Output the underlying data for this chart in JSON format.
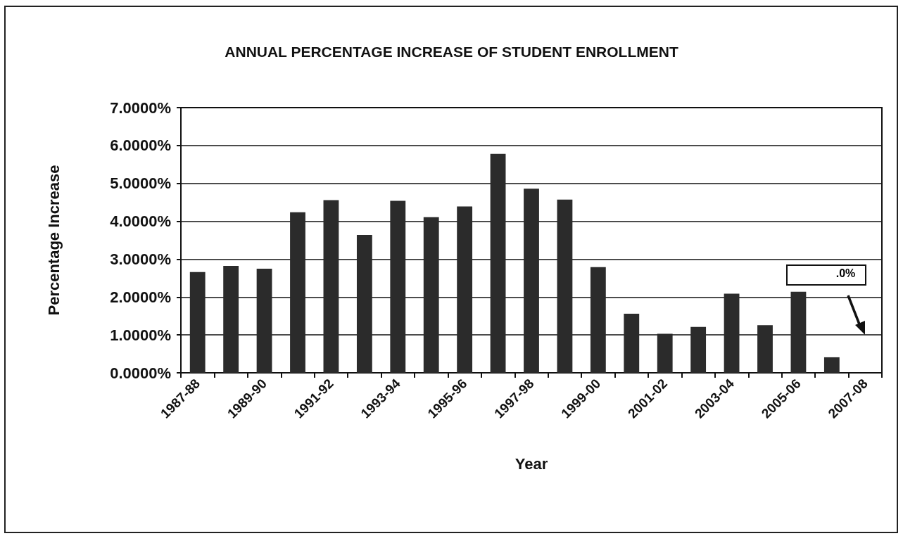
{
  "chart_data": {
    "type": "bar",
    "title": "ANNUAL PERCENTAGE INCREASE OF STUDENT ENROLLMENT",
    "xlabel": "Year",
    "ylabel": "Percentage Increase",
    "categories": [
      "1987-88",
      null,
      "1989-90",
      null,
      "1991-92",
      null,
      "1993-94",
      null,
      "1995-96",
      null,
      "1997-98",
      null,
      "1999-00",
      null,
      "2001-02",
      null,
      "2003-04",
      null,
      "2005-06",
      null,
      "2007-08"
    ],
    "values": [
      2.66,
      2.82,
      2.75,
      4.24,
      4.56,
      3.64,
      4.54,
      4.11,
      4.39,
      5.78,
      4.86,
      4.57,
      2.79,
      1.56,
      1.03,
      1.21,
      2.09,
      1.26,
      2.14,
      0.41,
      null
    ],
    "color": "#2b2b2b",
    "ylim": [
      0,
      7
    ],
    "yticks": [
      {
        "value": 0,
        "label": "0.0000%"
      },
      {
        "value": 1,
        "label": "1.0000%"
      },
      {
        "value": 2,
        "label": "2.0000%"
      },
      {
        "value": 3,
        "label": "3.0000%"
      },
      {
        "value": 4,
        "label": "4.0000%"
      },
      {
        "value": 5,
        "label": "5.0000%"
      },
      {
        "value": 6,
        "label": "6.0000%"
      },
      {
        "value": 7,
        "label": "7.0000%"
      }
    ],
    "grid": "y",
    "annotations": [
      ".0%"
    ]
  }
}
